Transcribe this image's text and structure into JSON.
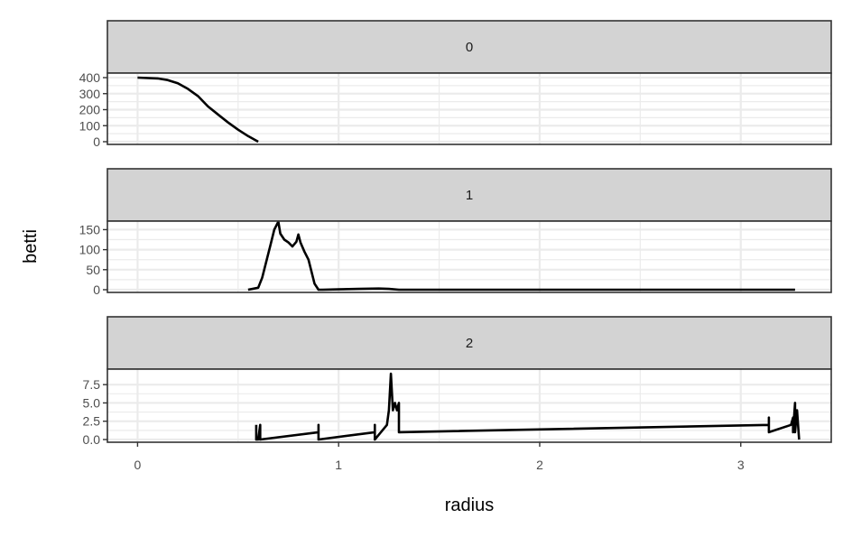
{
  "chart_data": {
    "type": "line",
    "xlabel": "radius",
    "ylabel": "betti",
    "x_ticks": [
      0,
      1,
      2,
      3
    ],
    "xlim": [
      -0.15,
      3.45
    ],
    "line_color": "#000000",
    "strip_fill": "#d3d3d3",
    "grid_color": "#ebebeb",
    "panels": [
      {
        "strip": "0",
        "ylim": [
          0,
          400
        ],
        "y_ticks": [
          0,
          100,
          200,
          300,
          400
        ],
        "x": [
          0.0,
          0.1,
          0.15,
          0.2,
          0.25,
          0.3,
          0.35,
          0.4,
          0.45,
          0.5,
          0.55,
          0.6
        ],
        "y": [
          400,
          395,
          385,
          365,
          330,
          285,
          220,
          170,
          120,
          75,
          35,
          0
        ]
      },
      {
        "strip": "1",
        "ylim": [
          0,
          160
        ],
        "y_ticks": [
          0,
          50,
          100,
          150
        ],
        "x": [
          0.55,
          0.6,
          0.62,
          0.64,
          0.66,
          0.68,
          0.7,
          0.71,
          0.73,
          0.75,
          0.77,
          0.79,
          0.8,
          0.81,
          0.83,
          0.85,
          0.88,
          0.9,
          0.92,
          1.0,
          1.1,
          1.2,
          1.25,
          1.3,
          3.27
        ],
        "y": [
          0,
          5,
          30,
          70,
          110,
          150,
          170,
          140,
          125,
          118,
          108,
          120,
          138,
          118,
          95,
          75,
          15,
          0,
          0,
          1,
          2,
          3,
          2,
          0,
          0
        ]
      },
      {
        "strip": "2",
        "ylim": [
          0,
          9
        ],
        "y_ticks": [
          0.0,
          2.5,
          5.0,
          7.5
        ],
        "y_tick_labels": [
          "0.0",
          "2.5",
          "5.0",
          "7.5"
        ],
        "x": [
          0.59,
          0.59,
          0.6,
          0.61,
          0.61,
          0.9,
          0.9,
          0.9,
          1.18,
          1.18,
          1.18,
          1.21,
          1.24,
          1.25,
          1.26,
          1.27,
          1.28,
          1.29,
          1.3,
          1.3,
          3.14,
          3.14,
          3.14,
          3.25,
          3.26,
          3.26,
          3.27,
          3.27,
          3.28,
          3.29
        ],
        "y": [
          2,
          0,
          0,
          2,
          0,
          1,
          2,
          0,
          1,
          2,
          0,
          1,
          2,
          4,
          9,
          4,
          5,
          4,
          5,
          1,
          2,
          3,
          1,
          2,
          3,
          1,
          5,
          1,
          4,
          0
        ]
      }
    ]
  }
}
